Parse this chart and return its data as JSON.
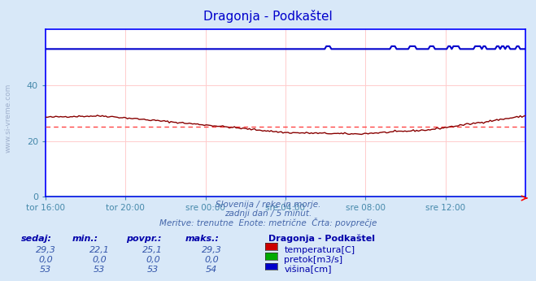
{
  "title": "Dragonja - Podkaštel",
  "bg_color": "#d8e8f8",
  "plot_bg_color": "#ffffff",
  "grid_color": "#ffcccc",
  "title_color": "#0000cc",
  "axis_label_color": "#4488aa",
  "text_color": "#4466aa",
  "border_color": "#0000ff",
  "xlabel_ticks": [
    "tor 16:00",
    "tor 20:00",
    "sre 00:00",
    "sre 04:00",
    "sre 08:00",
    "sre 12:00"
  ],
  "ylim": [
    0,
    60
  ],
  "yticks": [
    0,
    20,
    40
  ],
  "temp_color": "#880000",
  "temp_avg_color": "#ff4444",
  "flow_color": "#00aa00",
  "height_color": "#0000cc",
  "subtitle1": "Slovenija / reke in morje.",
  "subtitle2": "zadnji dan / 5 minut.",
  "subtitle3": "Meritve: trenutne  Enote: metrične  Črta: povprečje",
  "table_headers": [
    "sedaj:",
    "min.:",
    "povpr.:",
    "maks.:"
  ],
  "row1": [
    "29,3",
    "22,1",
    "25,1",
    "29,3"
  ],
  "row2": [
    "0,0",
    "0,0",
    "0,0",
    "0,0"
  ],
  "row3": [
    "53",
    "53",
    "53",
    "54"
  ],
  "legend_title": "Dragonja - Podkaštel",
  "legend_items": [
    "temperatura[C]",
    "pretok[m3/s]",
    "višina[cm]"
  ],
  "legend_colors": [
    "#cc0000",
    "#00aa00",
    "#0000cc"
  ]
}
